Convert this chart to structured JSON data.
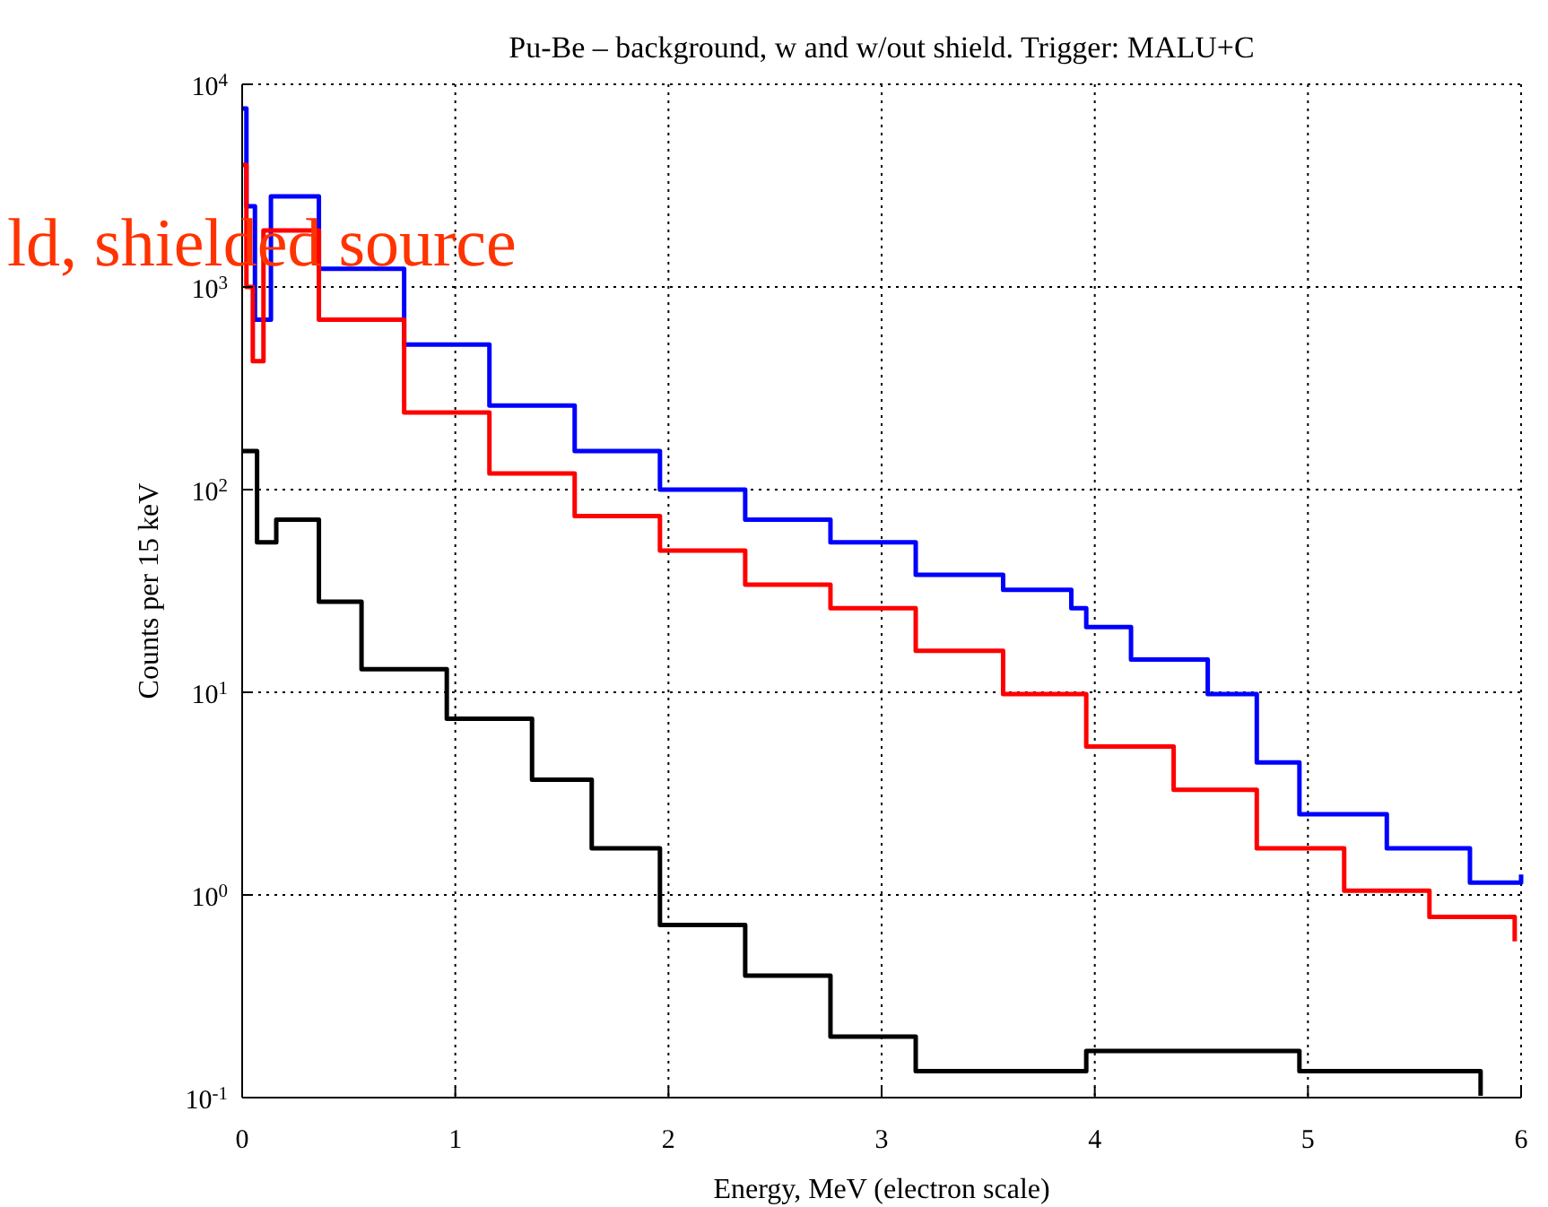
{
  "chart_data": {
    "type": "step",
    "title": "Pu-Be – background, w and w/out shield. Trigger: MALU+C",
    "xlabel": "Energy, MeV (electron scale)",
    "ylabel": "Counts per 15 keV",
    "annotations": [
      "ld, shielded source"
    ],
    "log": true,
    "grid": true,
    "xlim": [
      0,
      6
    ],
    "xticks": [
      0,
      1,
      2,
      3,
      4,
      5,
      6
    ],
    "ylim": [
      0.1,
      10000
    ],
    "yticks": [
      {
        "value": 0.1,
        "label": "10$^{-1}$"
      },
      {
        "value": 1,
        "label": "10$^{0}$"
      },
      {
        "value": 10,
        "label": "10$^{1}$"
      },
      {
        "value": 100,
        "label": "10$^{2}$"
      },
      {
        "value": 1000,
        "label": "10$^{3}$"
      },
      {
        "value": 10000,
        "label": "10$^{4}$"
      }
    ],
    "series": [
      {
        "color": "#0000ff",
        "x": [
          0,
          0.02,
          0.06,
          0.135,
          0.36,
          0.76,
          1.16,
          1.56,
          1.96,
          2.36,
          2.76,
          3.16,
          3.57,
          3.89,
          3.96,
          4.17,
          4.53,
          4.76,
          4.96,
          5.37,
          5.76,
          6
        ],
        "values": [
          7600,
          2500,
          690,
          2800,
          1230,
          520,
          260,
          155,
          100,
          71,
          55,
          38,
          32,
          26,
          21,
          14.5,
          9.8,
          4.5,
          2.5,
          1.7,
          1.15,
          1.26
        ]
      },
      {
        "color": "#ff0000",
        "x": [
          0,
          0.02,
          0.05,
          0.1,
          0.36,
          0.76,
          1.16,
          1.56,
          1.96,
          2.36,
          2.76,
          3.16,
          3.57,
          3.96,
          4.37,
          4.76,
          5.17,
          5.57,
          5.97
        ],
        "values": [
          4000,
          1000,
          430,
          1900,
          690,
          240,
          120,
          74,
          50,
          34,
          26,
          16,
          9.8,
          5.4,
          3.3,
          1.7,
          1.05,
          0.78,
          0.59
        ]
      },
      {
        "color": "#000000",
        "x": [
          0,
          0.07,
          0.16,
          0.36,
          0.56,
          0.96,
          1.36,
          1.64,
          1.96,
          2.36,
          2.76,
          3.16,
          3.96,
          4.96,
          5.81
        ],
        "values": [
          155,
          55,
          71,
          28,
          13,
          7.4,
          3.7,
          1.7,
          0.71,
          0.4,
          0.2,
          0.135,
          0.17,
          0.135,
          0.102
        ]
      }
    ]
  }
}
